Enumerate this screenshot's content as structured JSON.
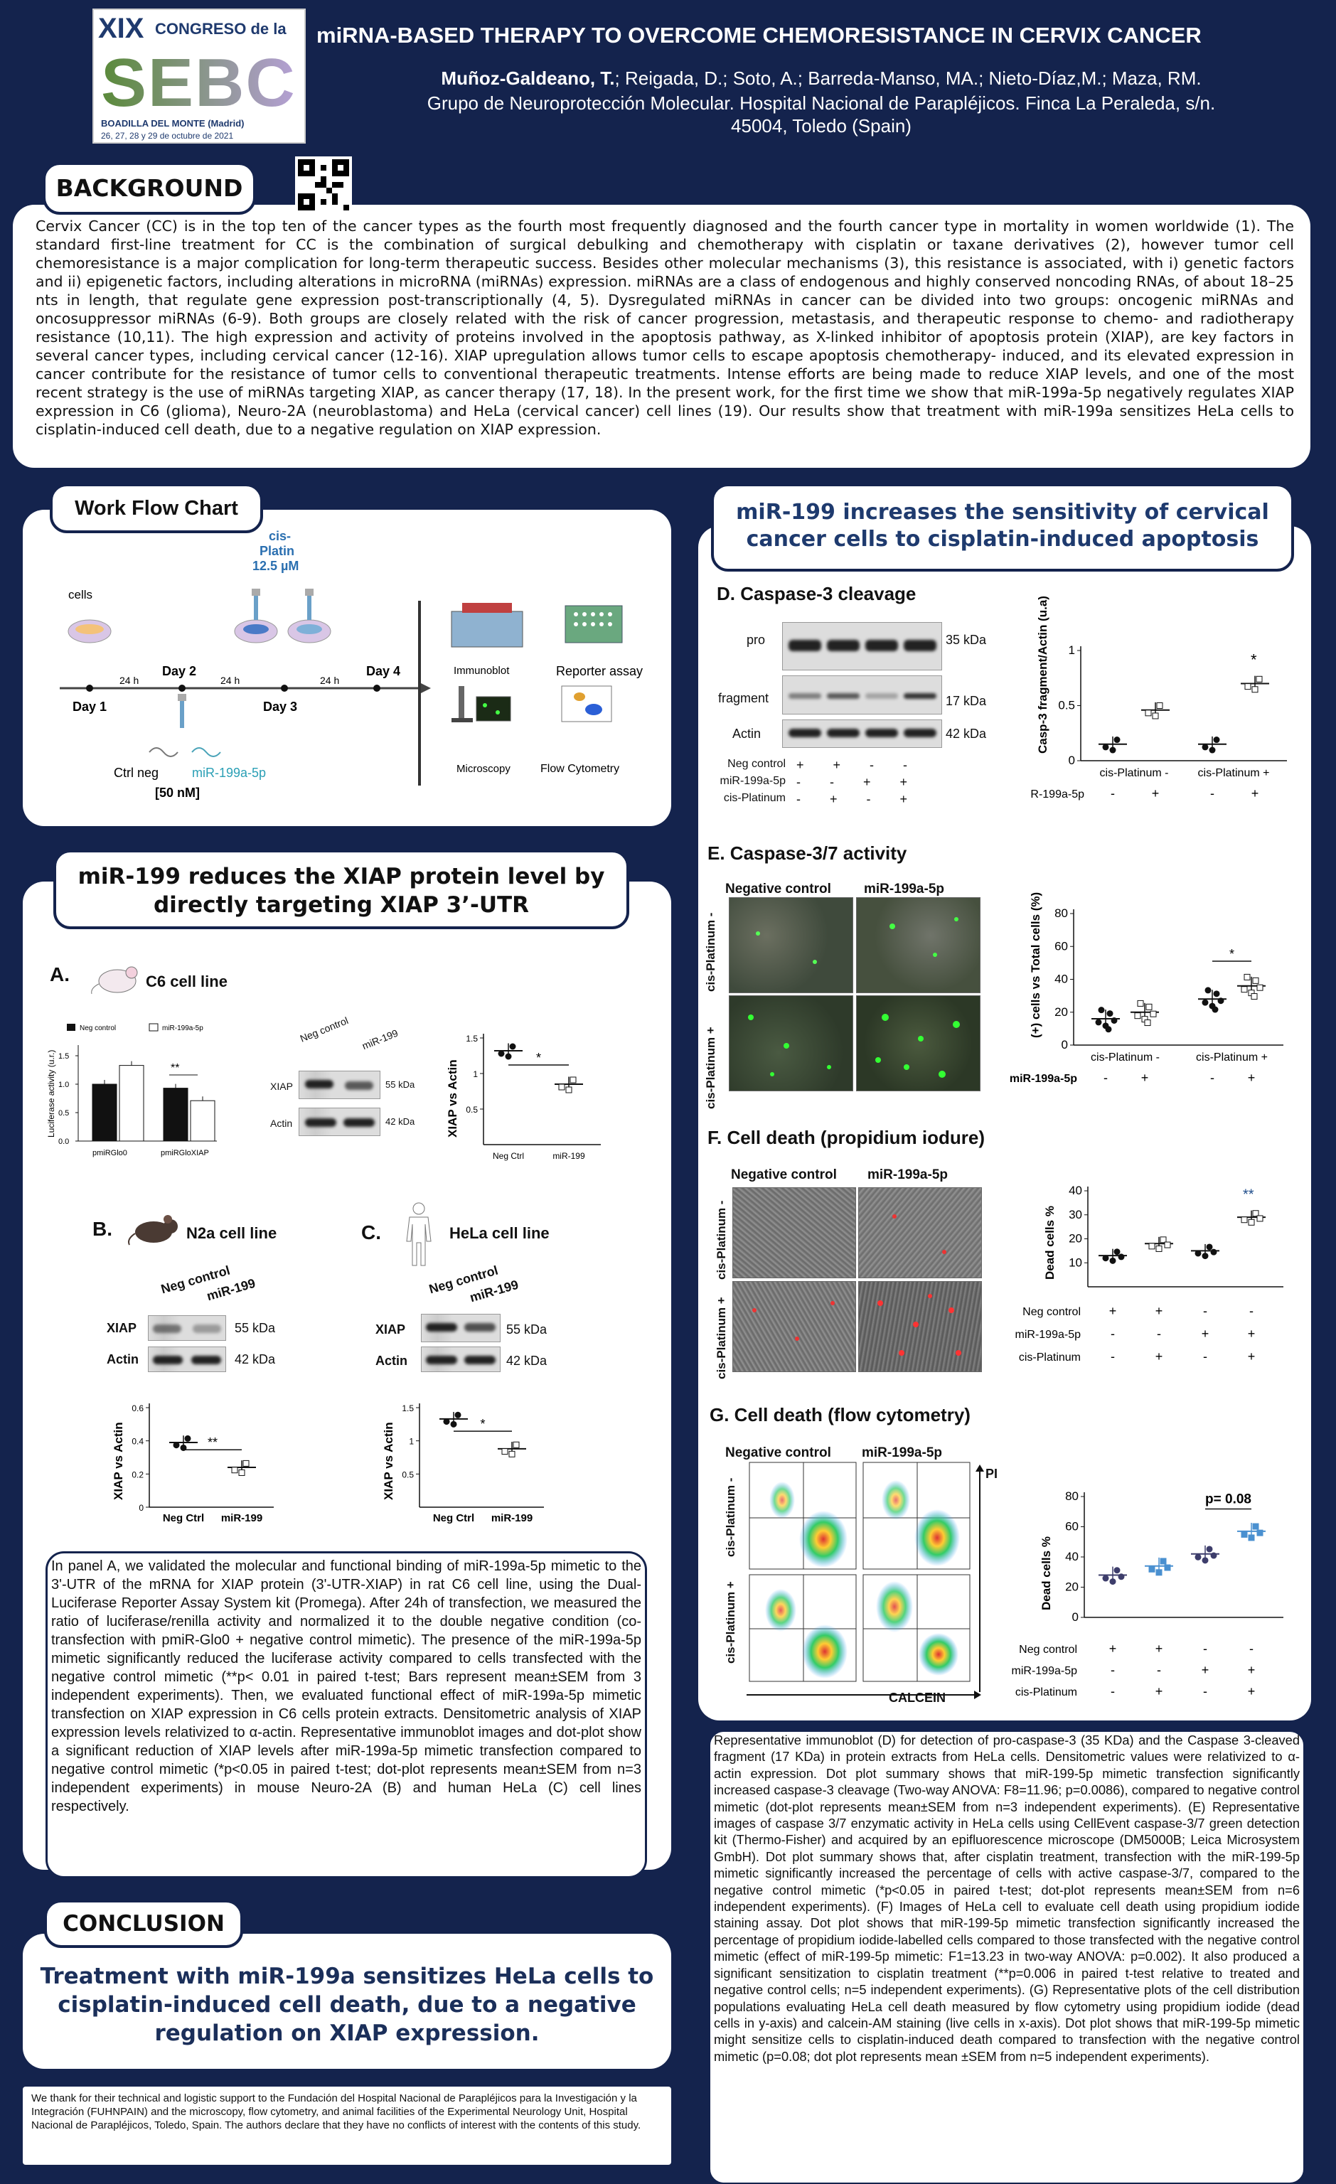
{
  "header": {
    "title": "miRNA-BASED THERAPY TO OVERCOME CHEMORESISTANCE IN CERVIX CANCER",
    "authors_bold": "Muñoz-Galdeano, T.",
    "authors_rest": "; Reigada, D.; Soto, A.; Barreda-Manso, MA.; Nieto-Díaz,M.; Maza, RM.",
    "affiliation": "Grupo de Neuroprotección Molecular. Hospital Nacional de Parapléjicos. Finca La Peraleda, s/n.",
    "city": "45004, Toledo (Spain)",
    "logo_num": "XIX",
    "logo_congreso": "CONGRESO de la",
    "logo_sebc": "SEBC",
    "logo_place": "BOADILLA DEL MONTE (Madrid)",
    "logo_dates": "26, 27, 28 y 29 de octubre de 2021"
  },
  "background": {
    "title": "BACKGROUND",
    "text": "Cervix Cancer (CC) is in the top ten of the cancer types as the fourth most frequently diagnosed and the fourth cancer type in mortality in women worldwide (1). The standard first-line treatment for CC is the combination of surgical debulking and chemotherapy with cisplatin or taxane derivatives (2), however tumor cell chemoresistance is a major complication for long-term therapeutic success. Besides other molecular mechanisms (3), this resistance is associated, with i) genetic factors and ii) epigenetic factors, including alterations in microRNA (miRNAs) expression. miRNAs are a class of endogenous and highly conserved noncoding RNAs, of about 18–25 nts in length, that regulate gene expression post-transcriptionally (4, 5). Dysregulated miRNAs in cancer can be divided into two groups: oncogenic miRNAs and oncosuppressor miRNAs (6-9). Both groups are closely related with the risk of cancer progression, metastasis, and therapeutic response to chemo- and radiotherapy resistance (10,11). The high expression and activity of proteins involved in the apoptosis pathway, as X-linked inhibitor of apoptosis protein (XIAP), are key factors in several cancer types, including cervical cancer (12-16). XIAP upregulation allows tumor cells to escape apoptosis chemotherapy- induced, and its elevated expression in cancer contribute for the resistance of tumor cells to conventional therapeutic treatments. Intense efforts are being made to reduce XIAP levels, and one of the most recent strategy is the use of miRNAs targeting XIAP, as cancer therapy (17, 18). In the present work, for the first time we show that miR-199a-5p negatively regulates XIAP expression in C6 (glioma), Neuro-2A (neuroblastoma) and HeLa (cervical cancer) cell lines (19). Our results show that treatment with miR-199a sensitizes HeLa cells to cisplatin-induced cell death, due to a negative regulation on XIAP expression."
  },
  "workflow": {
    "title": "Work Flow Chart",
    "cisplatin": "cis-\nPlatin\n12.5 µM",
    "cells": "cells",
    "day1": "Day 1",
    "day2": "Day 2",
    "day3": "Day 3",
    "day4": "Day 4",
    "h24": "24 h",
    "ctrl": "Ctrl neg",
    "mir": "miR-199a-5p",
    "conc": "[50 nM]",
    "immunoblot": "Immunoblot",
    "reporter": "Reporter assay",
    "microscopy": "Microscopy",
    "flow": "Flow Cytometry"
  },
  "xiap": {
    "title": "miR-199 reduces the XIAP protein level by directly targeting XIAP 3’-UTR",
    "a": "A.",
    "c6": "C6 cell line",
    "b": "B.",
    "n2a": "N2a cell line",
    "c": "C.",
    "hela": "HeLa cell line",
    "neg": "Neg control",
    "mir199": "miR-199",
    "mir199a5p": "miR-199a-5p",
    "xiap_lbl": "XIAP",
    "actin": "Actin",
    "kda55": "55 kDa",
    "kda42": "42 kDa",
    "negctrl": "Neg Ctrl",
    "ylabel": "XIAP vs Actin",
    "luc_ylabel": "Luciferase activity (u.r.)",
    "pmir0": "pmiRGlo0",
    "pmirx": "pmiRGloXIAP",
    "desc": "In panel A, we validated the molecular and functional binding of miR-199a-5p mimetic to the 3'-UTR of the mRNA for XIAP protein (3'-UTR-XIAP) in rat C6 cell line, using the Dual-Luciferase Reporter Assay System kit (Promega). After 24h of transfection, we measured the ratio of luciferase/renilla activity and normalized it to the double negative condition (co-transfection with pmiR-Glo0 + negative control mimetic). The presence of the miR-199a-5p mimetic significantly reduced the luciferase activity compared to cells transfected with the negative control mimetic (**p< 0.01 in paired t-test; Bars represent mean±SEM from 3 independent experiments). Then, we evaluated functional effect of miR-199a-5p mimetic transfection on XIAP expression in C6 cells protein extracts. Densitometric analysis of XIAP expression levels relativized to α-actin. Representative immunoblot images and dot-plot show a significant reduction of XIAP levels after miR-199a-5p mimetic transfection compared to negative control mimetic (*p<0.05 in paired t-test; dot-plot represents mean±SEM from n=3 independent experiments) in mouse Neuro-2A (B) and human HeLa (C) cell lines respectively."
  },
  "conclusion": {
    "title": "CONCLUSION",
    "text": "Treatment with miR-199a sensitizes HeLa cells to cisplatin-induced cell death, due to a negative regulation on XIAP expression.",
    "ack": "We thank for their technical and logistic support to the Fundación del Hospital Nacional de Parapléjicos para la Investigación y la Integración (FUHNPAIN) and the microscopy, flow cytometry, and animal facilities of the Experimental Neurology Unit, Hospital Nacional de Parapléjicos, Toledo, Spain. The authors declare that they have no conflicts of interest with the contents of this study."
  },
  "apoptosis": {
    "title": "miR-199 increases the sensitivity of cervical cancer cells to cisplatin-induced apoptosis",
    "d": "D. Caspase-3 cleavage",
    "e": "E. Caspase-3/7 activity",
    "f": "F. Cell death (propidium iodure)",
    "g": "G. Cell death (flow cytometry)",
    "pro": "pro",
    "fragment": "fragment",
    "actin": "Actin",
    "kda35": "35 kDa",
    "kda17": "17 kDa",
    "kda42": "42 kDa",
    "negctrl": "Neg control",
    "mir": "miR-199a-5p",
    "cis": "cis-Platinum",
    "cisminus": "cis-Platinum -",
    "cisplus": "cis-Platinum +",
    "neg_col": "Negative control",
    "mir_col": "miR-199a-5p",
    "d_ylabel": "Casp-3 fragment/Actin (u.a)",
    "e_ylabel": "(+) cells vs Total cells (%)",
    "dead_ylabel": "Dead cells %",
    "pval": "p= 0.08",
    "pi": "PI",
    "calcein": "CALCEIN",
    "plus": "+",
    "minus": "-",
    "desc": "Representative immunoblot (D) for detection of pro-caspase-3 (35 KDa) and the Caspase 3-cleaved fragment (17 KDa) in protein extracts from HeLa cells. Densitometric values were relativized to α-actin expression. Dot plot summary shows that miR-199-5p mimetic transfection significantly increased caspase-3 cleavage (Two-way ANOVA: F8=11.96; p=0.0086), compared to negative control mimetic (dot-plot represents mean±SEM from n=3 independent experiments). (E) Representative images of caspase 3/7 enzymatic activity in HeLa cells using CellEvent caspase-3/7 green detection kit (Thermo-Fisher) and acquired by an epifluorescence microscope (DM5000B; Leica Microsystem GmbH). Dot plot summary shows that, after cisplatin treatment, transfection with the miR-199-5p mimetic significantly increased the percentage of cells with active caspase-3/7, compared to the negative control mimetic (*p<0.05 in paired t-test; dot-plot represents mean±SEM from n=6 independent experiments). (F) Images of HeLa cell to evaluate cell death using propidium iodide staining assay. Dot plot shows that miR-199-5p mimetic transfection significantly increased the percentage of propidium iodide-labelled cells compared to those transfected with the negative control mimetic (effect of miR-199-5p mimetic: F1=13.23 in two-way ANOVA: p=0.002). It also produced a significant sensitization to cisplatin treatment (**p=0.006 in paired t-test relative to treated and negative control cells; n=5 independent experiments). (G) Representative plots of the cell distribution populations evaluating HeLa cell death measured by flow cytometry using propidium iodide (dead cells in y-axis) and calcein-AM staining (live cells in x-axis). Dot plot shows that miR-199-5p mimetic might sensitize cells to cisplatin-induced death compared to transfection with the negative control mimetic (p=0.08; dot plot represents mean ±SEM from n=5 independent experiments)."
  },
  "chart_data": [
    {
      "type": "bar",
      "title": "A. luciferase",
      "ylabel": "Luciferase activity (u.r.)",
      "categories": [
        "pmiRGlo0",
        "pmiRGloXIAP"
      ],
      "series": [
        {
          "name": "Negative control",
          "values": [
            1.0,
            0.93
          ]
        },
        {
          "name": "miR-199a-5p",
          "values": [
            1.33,
            0.71
          ]
        }
      ],
      "ylim": [
        0,
        1.5
      ],
      "annotation": "**"
    },
    {
      "type": "scatter",
      "title": "A. C6 XIAP vs Actin",
      "categories": [
        "Neg Ctrl",
        "miR-199"
      ],
      "values": [
        1.32,
        0.85
      ],
      "ylim": [
        0,
        1.5
      ],
      "annotation": "*"
    },
    {
      "type": "scatter",
      "title": "B. N2a XIAP vs Actin",
      "categories": [
        "Neg Ctrl",
        "miR-199"
      ],
      "values": [
        0.39,
        0.24
      ],
      "ylim": [
        0,
        0.6
      ],
      "annotation": "**"
    },
    {
      "type": "scatter",
      "title": "C. HeLa XIAP vs Actin",
      "categories": [
        "Neg Ctrl",
        "miR-199"
      ],
      "values": [
        1.33,
        0.88
      ],
      "ylim": [
        0,
        1.5
      ],
      "annotation": "*"
    },
    {
      "type": "scatter",
      "title": "D. Casp-3 fragment/Actin",
      "values": [
        0.15,
        0.46,
        0.15,
        0.7
      ],
      "ylim": [
        0,
        1
      ],
      "annotation": "*"
    },
    {
      "type": "scatter",
      "title": "E. caspase-3/7",
      "values": [
        16,
        20,
        28,
        36
      ],
      "ylim": [
        0,
        80
      ],
      "annotation": "*"
    },
    {
      "type": "scatter",
      "title": "F. PI dead cells",
      "values": [
        13,
        18,
        15,
        29
      ],
      "ylim": [
        0,
        40
      ],
      "annotation": "**"
    },
    {
      "type": "scatter",
      "title": "G. flow dead cells",
      "values": [
        28,
        34,
        42,
        57
      ],
      "ylim": [
        0,
        80
      ],
      "annotation": "p= 0.08"
    }
  ]
}
